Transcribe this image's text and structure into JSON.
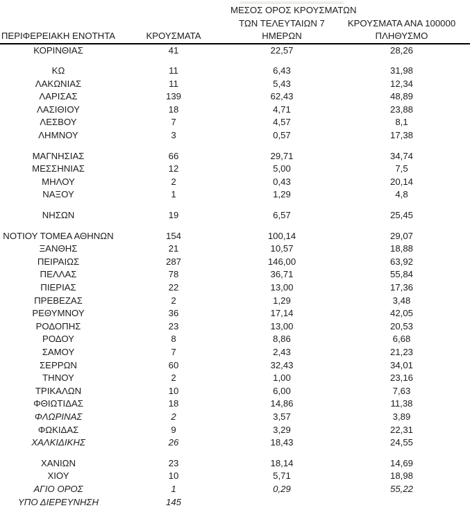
{
  "table": {
    "headers": {
      "region": "ΠΕΡΙΦΕΡΕΙΑΚΗ ΕΝΟΤΗΤΑ",
      "cases": "ΚΡΟΥΣΜΑΤΑ",
      "avg7_line1": "ΜΕΣΟΣ ΟΡΟΣ ΚΡΟΥΣΜΑΤΩΝ",
      "avg7_line2": "ΤΩΝ ΤΕΛΕΥΤΑΙΩΝ 7",
      "avg7_line3": "ΗΜΕΡΩΝ",
      "per100k_line1": "ΚΡΟΥΣΜΑΤΑ ΑΝΑ 100000",
      "per100k_line2": "ΠΛΗΘΥΣΜΟ"
    },
    "text_color": "#1c1c1c",
    "rule_color": "#000000",
    "groups": [
      {
        "rows": [
          {
            "name": "ΚΟΡΙΝΘΙΑΣ",
            "cases": "41",
            "avg7": "22,57",
            "per100k": "28,26",
            "italic": "none"
          }
        ]
      },
      {
        "rows": [
          {
            "name": "ΚΩ",
            "cases": "11",
            "avg7": "6,43",
            "per100k": "31,98",
            "italic": "none"
          },
          {
            "name": "ΛΑΚΩΝΙΑΣ",
            "cases": "11",
            "avg7": "5,43",
            "per100k": "12,34",
            "italic": "none"
          },
          {
            "name": "ΛΑΡΙΣΑΣ",
            "cases": "139",
            "avg7": "62,43",
            "per100k": "48,89",
            "italic": "none"
          },
          {
            "name": "ΛΑΣΙΘΙΟΥ",
            "cases": "18",
            "avg7": "4,71",
            "per100k": "23,88",
            "italic": "none"
          },
          {
            "name": "ΛΕΣΒΟΥ",
            "cases": "7",
            "avg7": "4,57",
            "per100k": "8,1",
            "italic": "none"
          },
          {
            "name": "ΛΗΜΝΟΥ",
            "cases": "3",
            "avg7": "0,57",
            "per100k": "17,38",
            "italic": "none"
          }
        ]
      },
      {
        "rows": [
          {
            "name": "ΜΑΓΝΗΣΙΑΣ",
            "cases": "66",
            "avg7": "29,71",
            "per100k": "34,74",
            "italic": "none"
          },
          {
            "name": "ΜΕΣΣΗΝΙΑΣ",
            "cases": "12",
            "avg7": "5,00",
            "per100k": "7,5",
            "italic": "none"
          },
          {
            "name": "ΜΗΛΟΥ",
            "cases": "2",
            "avg7": "0,43",
            "per100k": "20,14",
            "italic": "none"
          },
          {
            "name": "ΝΑΞΟΥ",
            "cases": "1",
            "avg7": "1,29",
            "per100k": "4,8",
            "italic": "none"
          }
        ]
      },
      {
        "rows": [
          {
            "name": "ΝΗΣΩΝ",
            "cases": "19",
            "avg7": "6,57",
            "per100k": "25,45",
            "italic": "none"
          }
        ]
      },
      {
        "rows": [
          {
            "name": "ΝΟΤΙΟΥ ΤΟΜΕΑ ΑΘΗΝΩΝ",
            "cases": "154",
            "avg7": "100,14",
            "per100k": "29,07",
            "italic": "none"
          },
          {
            "name": "ΞΑΝΘΗΣ",
            "cases": "21",
            "avg7": "10,57",
            "per100k": "18,88",
            "italic": "none"
          },
          {
            "name": "ΠΕΙΡΑΙΩΣ",
            "cases": "287",
            "avg7": "146,00",
            "per100k": "63,92",
            "italic": "none"
          },
          {
            "name": "ΠΕΛΛΑΣ",
            "cases": "78",
            "avg7": "36,71",
            "per100k": "55,84",
            "italic": "none"
          },
          {
            "name": "ΠΙΕΡΙΑΣ",
            "cases": "22",
            "avg7": "13,00",
            "per100k": "17,36",
            "italic": "none"
          },
          {
            "name": "ΠΡΕΒΕΖΑΣ",
            "cases": "2",
            "avg7": "1,29",
            "per100k": "3,48",
            "italic": "none"
          },
          {
            "name": "ΡΕΘΥΜΝΟΥ",
            "cases": "36",
            "avg7": "17,14",
            "per100k": "42,05",
            "italic": "none"
          },
          {
            "name": "ΡΟΔΟΠΗΣ",
            "cases": "23",
            "avg7": "13,00",
            "per100k": "20,53",
            "italic": "none"
          },
          {
            "name": "ΡΟΔΟΥ",
            "cases": "8",
            "avg7": "8,86",
            "per100k": "6,68",
            "italic": "none"
          },
          {
            "name": "ΣΑΜΟΥ",
            "cases": "7",
            "avg7": "2,43",
            "per100k": "21,23",
            "italic": "none"
          },
          {
            "name": "ΣΕΡΡΩΝ",
            "cases": "60",
            "avg7": "32,43",
            "per100k": "34,01",
            "italic": "none"
          },
          {
            "name": "ΤΗΝΟΥ",
            "cases": "2",
            "avg7": "1,00",
            "per100k": "23,16",
            "italic": "none"
          },
          {
            "name": "ΤΡΙΚΑΛΩΝ",
            "cases": "10",
            "avg7": "6,00",
            "per100k": "7,63",
            "italic": "none"
          },
          {
            "name": "ΦΘΙΩΤΙΔΑΣ",
            "cases": "18",
            "avg7": "14,86",
            "per100k": "11,38",
            "italic": "none"
          },
          {
            "name": "ΦΛΩΡΙΝΑΣ",
            "cases": "2",
            "avg7": "3,57",
            "per100k": "3,89",
            "italic": "name_cases"
          },
          {
            "name": "ΦΩΚΙΔΑΣ",
            "cases": "9",
            "avg7": "3,29",
            "per100k": "22,31",
            "italic": "none"
          },
          {
            "name": "ΧΑΛΚΙΔΙΚΗΣ",
            "cases": "26",
            "avg7": "18,43",
            "per100k": "24,55",
            "italic": "name_cases"
          }
        ]
      },
      {
        "rows": [
          {
            "name": "ΧΑΝΙΩΝ",
            "cases": "23",
            "avg7": "18,14",
            "per100k": "14,69",
            "italic": "none"
          },
          {
            "name": "ΧΙΟΥ",
            "cases": "10",
            "avg7": "5,71",
            "per100k": "18,98",
            "italic": "none"
          },
          {
            "name": "ΑΓΙΟ ΟΡΟΣ",
            "cases": "1",
            "avg7": "0,29",
            "per100k": "55,22",
            "italic": "all"
          },
          {
            "name": "ΥΠΟ ΔΙΕΡΕΥΝΗΣΗ",
            "cases": "145",
            "avg7": "",
            "per100k": "",
            "italic": "all"
          }
        ]
      }
    ]
  }
}
